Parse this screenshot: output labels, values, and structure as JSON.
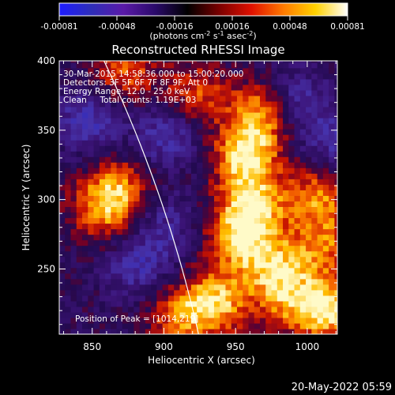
{
  "colorbar": {
    "ticks": [
      "-0.00081",
      "-0.00048",
      "-0.00016",
      "0.00016",
      "0.00048",
      "0.00081"
    ],
    "unit_label": "(photons cm",
    "unit_sup1": "-2",
    "unit_mid": " s",
    "unit_sup2": "-1",
    "unit_tail": " asec",
    "unit_sup3": "-2",
    "unit_close": ")",
    "gradient": [
      "#1e1cff",
      "#2e2eb8",
      "#5a1aa8",
      "#2a0a6a",
      "#000000",
      "#7a0000",
      "#e01000",
      "#ff7a00",
      "#ffd200",
      "#ffffff"
    ]
  },
  "plot": {
    "title": "Reconstructed RHESSI Image",
    "annotations": [
      "30-Mar-2015 14:58:36.000 to 15:00:20.000",
      "Detectors: 3F 5F 6F 7F 8F 9F, Att 0",
      "Energy Range: 12.0 - 25.0 keV",
      "Clean     Total counts: 1.19E+03"
    ],
    "peak_label": "Position of Peak = [1014,219]",
    "footer_date": "20-May-2022 05:59"
  },
  "chart_data": {
    "type": "heatmap",
    "title": "Reconstructed RHESSI Image",
    "xlabel": "Heliocentric X (arcsec)",
    "ylabel": "Heliocentric Y (arcsec)",
    "xlim": [
      827,
      1021
    ],
    "ylim": [
      203,
      400
    ],
    "xticks": [
      850,
      900,
      950,
      1000
    ],
    "yticks": [
      250,
      300,
      350,
      400
    ],
    "xtick_labels": [
      "850",
      "900",
      "950",
      "1000"
    ],
    "ytick_labels": [
      "250",
      "300",
      "350",
      "400"
    ],
    "peak": [
      1014,
      219
    ],
    "limb_color": "#ffffff",
    "bright_regions": [
      {
        "x": 955,
        "y": 330,
        "level": 0.95
      },
      {
        "x": 960,
        "y": 295,
        "level": 0.9
      },
      {
        "x": 950,
        "y": 270,
        "level": 0.8
      },
      {
        "x": 975,
        "y": 250,
        "level": 0.75
      },
      {
        "x": 865,
        "y": 305,
        "level": 0.7
      },
      {
        "x": 855,
        "y": 290,
        "level": 0.55
      },
      {
        "x": 1005,
        "y": 300,
        "level": 0.7
      },
      {
        "x": 1010,
        "y": 265,
        "level": 0.6
      },
      {
        "x": 1014,
        "y": 219,
        "level": 1.0
      },
      {
        "x": 935,
        "y": 225,
        "level": 0.85
      },
      {
        "x": 910,
        "y": 215,
        "level": 0.65
      },
      {
        "x": 985,
        "y": 225,
        "level": 0.6
      },
      {
        "x": 870,
        "y": 390,
        "level": 0.6
      },
      {
        "x": 920,
        "y": 375,
        "level": 0.55
      },
      {
        "x": 965,
        "y": 360,
        "level": 0.8
      }
    ],
    "dim_regions": [
      {
        "x": 845,
        "y": 355,
        "level": -0.6
      },
      {
        "x": 900,
        "y": 345,
        "level": -0.55
      },
      {
        "x": 880,
        "y": 250,
        "level": -0.5
      },
      {
        "x": 990,
        "y": 370,
        "level": -0.5
      },
      {
        "x": 1015,
        "y": 340,
        "level": -0.45
      },
      {
        "x": 900,
        "y": 280,
        "level": -0.4
      }
    ]
  }
}
